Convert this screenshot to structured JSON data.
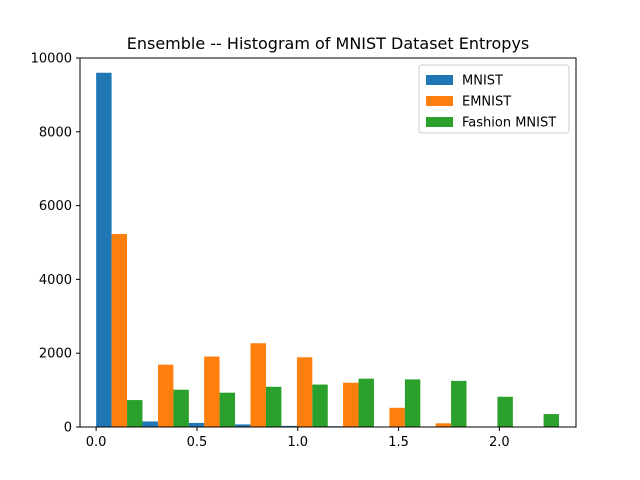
{
  "chart_data": {
    "type": "bar",
    "title": "Ensemble -- Histogram of MNIST Dataset Entropys",
    "xlabel": "",
    "ylabel": "",
    "xlim": [
      -0.08,
      2.38
    ],
    "ylim": [
      0,
      10000
    ],
    "x_ticks": [
      0.0,
      0.5,
      1.0,
      1.5,
      2.0
    ],
    "x_tick_labels": [
      "0.0",
      "0.5",
      "1.0",
      "1.5",
      "2.0"
    ],
    "y_ticks": [
      0,
      2000,
      4000,
      6000,
      8000,
      10000
    ],
    "y_tick_labels": [
      "0",
      "2000",
      "4000",
      "6000",
      "8000",
      "10000"
    ],
    "bin_centers": [
      0.115,
      0.345,
      0.574,
      0.804,
      1.034,
      1.263,
      1.493,
      1.722,
      1.952,
      2.181
    ],
    "bar_width": 0.0766,
    "legend": "top-right",
    "grid": false,
    "series": [
      {
        "name": "MNIST",
        "color": "#1f77b4",
        "values": [
          9600,
          150,
          110,
          70,
          30,
          20,
          0,
          0,
          0,
          0
        ]
      },
      {
        "name": "EMNIST",
        "color": "#ff7f0e",
        "values": [
          5230,
          1690,
          1910,
          2270,
          1890,
          1200,
          520,
          100,
          0,
          0
        ]
      },
      {
        "name": "Fashion MNIST",
        "color": "#2ca02c",
        "values": [
          730,
          1010,
          930,
          1090,
          1150,
          1310,
          1290,
          1250,
          820,
          350
        ]
      }
    ]
  }
}
